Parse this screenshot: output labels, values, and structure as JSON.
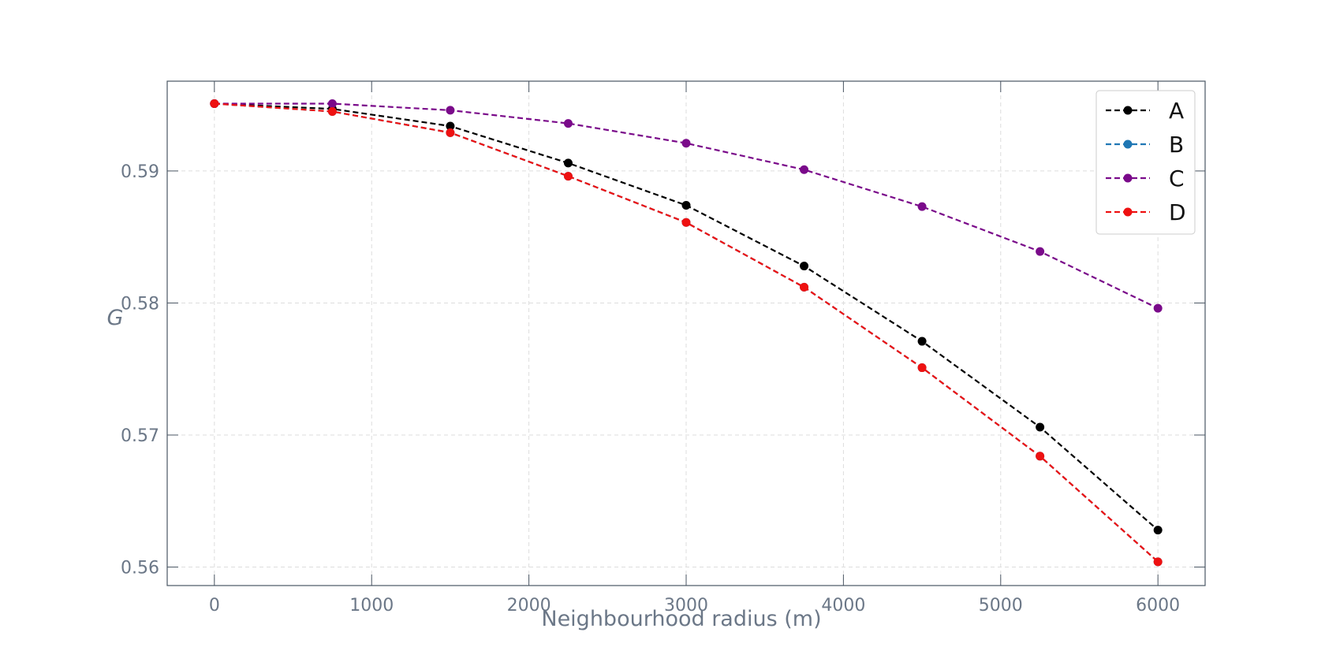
{
  "chart_data": {
    "type": "line",
    "xlabel": "Neighbourhood radius (m)",
    "ylabel": "G",
    "xlim": [
      -300,
      6300
    ],
    "ylim": [
      0.5586,
      0.5968
    ],
    "x_ticks": [
      0,
      1000,
      2000,
      3000,
      4000,
      5000,
      6000
    ],
    "x_tick_labels": [
      "0",
      "1000",
      "2000",
      "3000",
      "4000",
      "5000",
      "6000"
    ],
    "y_ticks": [
      0.56,
      0.57,
      0.58,
      0.59
    ],
    "y_tick_labels": [
      "0.56",
      "0.57",
      "0.58",
      "0.59"
    ],
    "grid": true,
    "legend_position": "top-right",
    "x": [
      0,
      750,
      1500,
      2250,
      3000,
      3750,
      4500,
      5250,
      6000
    ],
    "series": [
      {
        "name": "A",
        "color": "#000000",
        "values": [
          0.5951,
          0.5947,
          0.5934,
          0.5906,
          0.5874,
          0.5828,
          0.5771,
          0.5706,
          0.5628
        ]
      },
      {
        "name": "B",
        "color": "#1f77b4",
        "values": [
          0.5951,
          0.5945,
          0.5929,
          0.5896,
          0.5861,
          0.5812,
          0.5751,
          0.5684,
          0.5604
        ]
      },
      {
        "name": "C",
        "color": "#7a0a8a",
        "values": [
          0.5951,
          0.5951,
          0.5946,
          0.5936,
          0.5921,
          0.5901,
          0.5873,
          0.5839,
          0.5796
        ]
      },
      {
        "name": "D",
        "color": "#ee1111",
        "values": [
          0.5951,
          0.5945,
          0.5929,
          0.5896,
          0.5861,
          0.5812,
          0.5751,
          0.5684,
          0.5604
        ]
      }
    ]
  }
}
